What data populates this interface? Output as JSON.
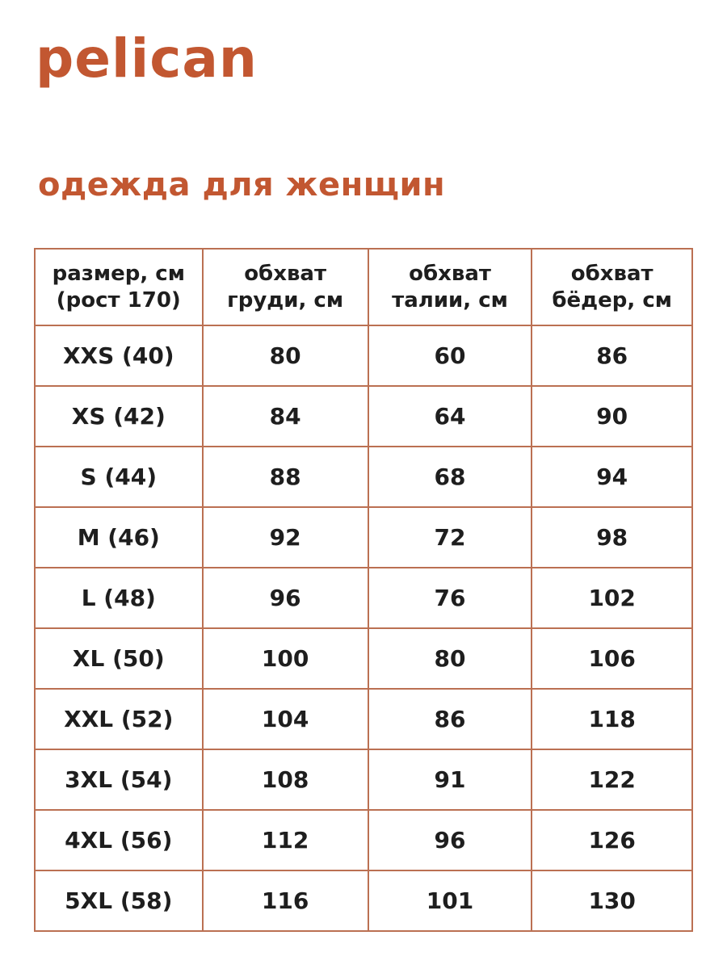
{
  "brand": {
    "logo_text": "pelican"
  },
  "header": {
    "title": "одежда для женщин"
  },
  "colors": {
    "accent": "#c25731",
    "table_border": "#bb7052",
    "text": "#1e1e1e",
    "background": "#ffffff"
  },
  "table": {
    "columns": [
      "размер, см\n(рост 170)",
      "обхват\nгруди, см",
      "обхват\nталии, см",
      "обхват\nбёдер, см"
    ],
    "rows": [
      [
        "XXS (40)",
        "80",
        "60",
        "86"
      ],
      [
        "XS (42)",
        "84",
        "64",
        "90"
      ],
      [
        "S (44)",
        "88",
        "68",
        "94"
      ],
      [
        "M (46)",
        "92",
        "72",
        "98"
      ],
      [
        "L (48)",
        "96",
        "76",
        "102"
      ],
      [
        "XL (50)",
        "100",
        "80",
        "106"
      ],
      [
        "XXL (52)",
        "104",
        "86",
        "118"
      ],
      [
        "3XL (54)",
        "108",
        "91",
        "122"
      ],
      [
        "4XL (56)",
        "112",
        "96",
        "126"
      ],
      [
        "5XL (58)",
        "116",
        "101",
        "130"
      ]
    ]
  }
}
